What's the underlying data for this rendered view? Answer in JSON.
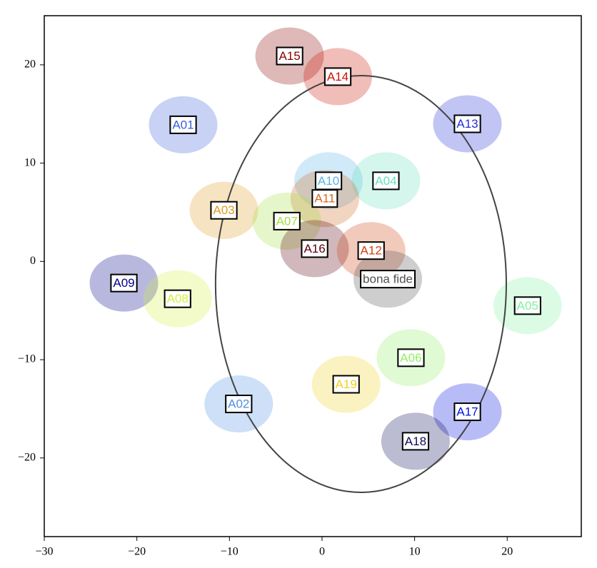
{
  "chart_data": {
    "type": "scatter",
    "xlim": [
      -30,
      28
    ],
    "ylim": [
      -28,
      25
    ],
    "xticks": [
      {
        "value": -30,
        "label": "−30"
      },
      {
        "value": -20,
        "label": "−20"
      },
      {
        "value": -10,
        "label": "−10"
      },
      0,
      10,
      20
    ],
    "yticks": [
      {
        "value": -20,
        "label": "−20"
      },
      {
        "value": -10,
        "label": "−10"
      },
      0,
      10,
      20
    ],
    "ellipse": {
      "cx": 4.2,
      "cy": -2.3,
      "rx": 15.7,
      "ry": 21.2,
      "color": "#444444"
    },
    "annotations": [
      {
        "text": "A15",
        "x": -3.5,
        "y": 20.9,
        "color": "#8b0000"
      },
      {
        "text": "A14",
        "x": 1.7,
        "y": 18.8,
        "color": "#cc1100"
      },
      {
        "text": "A01",
        "x": -15.0,
        "y": 13.9,
        "color": "#3a5fd9"
      },
      {
        "text": "A13",
        "x": 15.7,
        "y": 14.0,
        "color": "#1f2fd9"
      },
      {
        "text": "A10",
        "x": 0.7,
        "y": 8.2,
        "color": "#56b4e9"
      },
      {
        "text": "A04",
        "x": 6.9,
        "y": 8.2,
        "color": "#66e0c0"
      },
      {
        "text": "A11",
        "x": 0.3,
        "y": 6.4,
        "color": "#d2691e"
      },
      {
        "text": "A03",
        "x": -10.6,
        "y": 5.2,
        "color": "#e09a20"
      },
      {
        "text": "A07",
        "x": -3.8,
        "y": 4.1,
        "color": "#a0e040"
      },
      {
        "text": "A16",
        "x": -0.8,
        "y": 1.3,
        "color": "#5a0010"
      },
      {
        "text": "A12",
        "x": 5.3,
        "y": 1.1,
        "color": "#d04010"
      },
      {
        "text": "bona fide",
        "x": 7.1,
        "y": -1.8,
        "color": "#505050"
      },
      {
        "text": "A09",
        "x": -21.4,
        "y": -2.2,
        "color": "#00008b"
      },
      {
        "text": "A08",
        "x": -15.6,
        "y": -3.8,
        "color": "#d4f040"
      },
      {
        "text": "A05",
        "x": 22.2,
        "y": -4.5,
        "color": "#80f0a0"
      },
      {
        "text": "A06",
        "x": 9.6,
        "y": -9.8,
        "color": "#90ee60"
      },
      {
        "text": "A19",
        "x": 2.6,
        "y": -12.5,
        "color": "#f0d020"
      },
      {
        "text": "A02",
        "x": -9.0,
        "y": -14.5,
        "color": "#4a90e2"
      },
      {
        "text": "A17",
        "x": 15.7,
        "y": -15.3,
        "color": "#0010e0"
      },
      {
        "text": "A18",
        "x": 10.1,
        "y": -18.3,
        "color": "#0a0a5a"
      }
    ]
  }
}
